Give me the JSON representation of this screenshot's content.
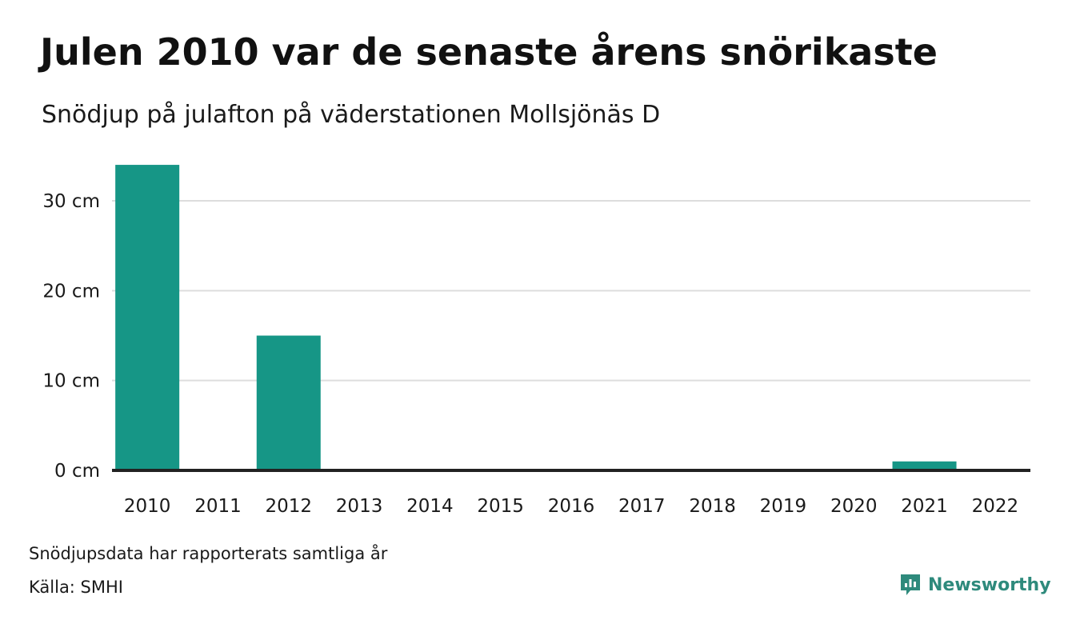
{
  "title": "Julen 2010 var de senaste årens snörikaste",
  "subtitle": "Snödjup på julafton på väderstationen Mollsjönäs D",
  "note": "Snödjupsdata har rapporterats samtliga år",
  "source": "Källa: SMHI",
  "brand": {
    "name": "Newsworthy",
    "icon": "newsworthy-logo-icon"
  },
  "colors": {
    "bar": "#169686",
    "grid": "#dddddd",
    "baseline": "#222222",
    "brand": "#2e8a7c"
  },
  "chart_data": {
    "type": "bar",
    "title": "Julen 2010 var de senaste årens snörikaste",
    "subtitle": "Snödjup på julafton på väderstationen Mollsjönäs D",
    "categories": [
      "2010",
      "2011",
      "2012",
      "2013",
      "2014",
      "2015",
      "2016",
      "2017",
      "2018",
      "2019",
      "2020",
      "2021",
      "2022"
    ],
    "values": [
      34,
      0,
      15,
      0,
      0,
      0,
      0,
      0,
      0,
      0,
      0,
      1,
      0
    ],
    "unit": "cm",
    "ylim": [
      0,
      35
    ],
    "yticks": [
      0,
      10,
      20,
      30
    ],
    "ytick_labels": [
      "0 cm",
      "10 cm",
      "20 cm",
      "30 cm"
    ],
    "grid": true,
    "legend": "none"
  }
}
